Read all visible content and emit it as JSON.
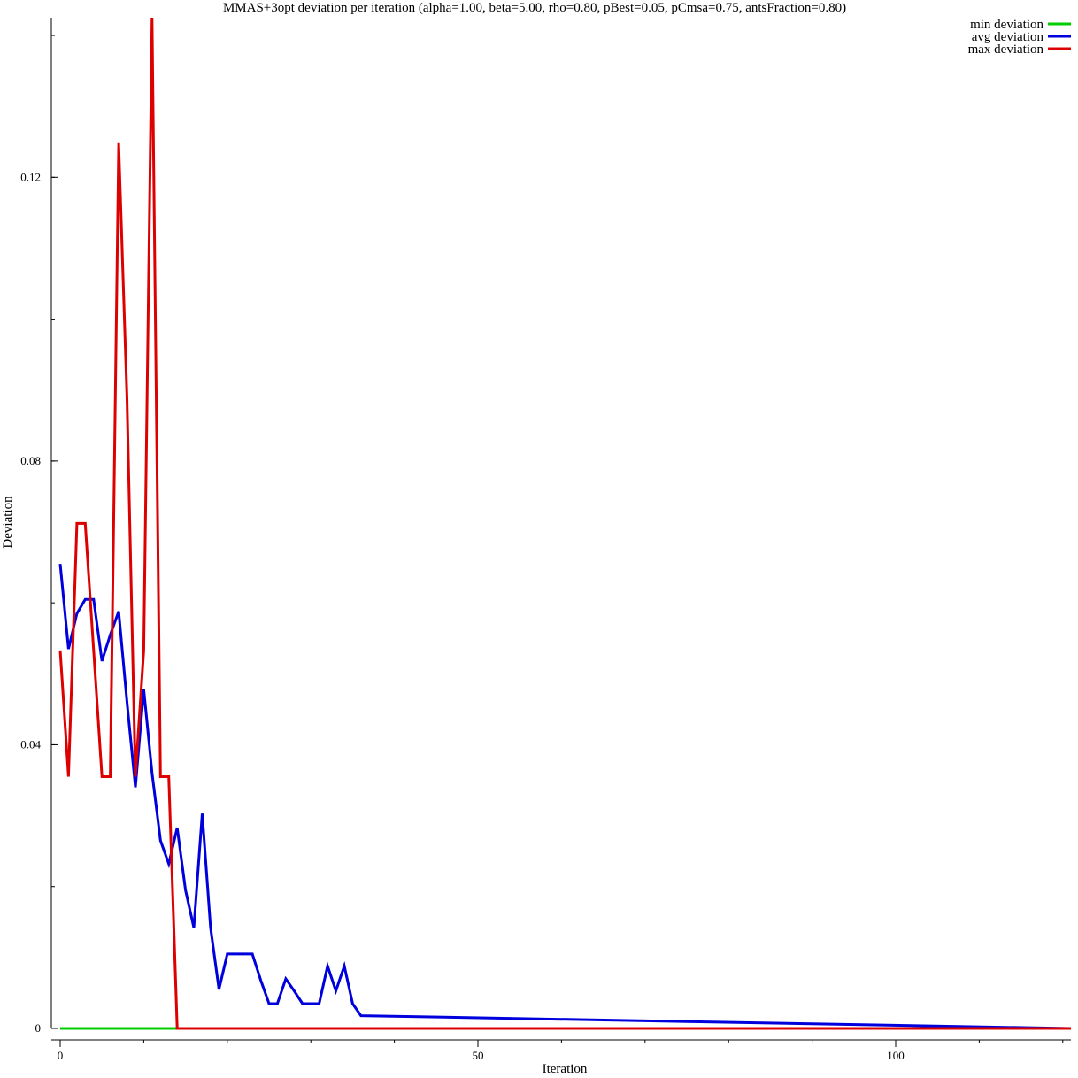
{
  "chart_data": {
    "type": "line",
    "title": "MMAS+3opt deviation per iteration (alpha=1.00, beta=5.00, rho=0.80, pBest=0.05, pCmsa=0.75, antsFraction=0.80)",
    "xlabel": "Iteration",
    "ylabel": "Deviation",
    "xlim": [
      -1,
      121
    ],
    "ylim": [
      0,
      0.1425
    ],
    "x_ticks": [
      0,
      50,
      100
    ],
    "x_tick_labels": [
      "0",
      "50",
      "100"
    ],
    "y_ticks": [
      0,
      0.04,
      0.08,
      0.12
    ],
    "y_tick_labels": [
      "0",
      "0.04",
      "0.08",
      "0.12"
    ],
    "grid": false,
    "legend_position": "top-right",
    "series": [
      {
        "name": "min deviation",
        "color": "#00cc00",
        "x": [
          0,
          121
        ],
        "y": [
          0,
          0
        ]
      },
      {
        "name": "avg deviation",
        "color": "#0000dd",
        "x": [
          0,
          1,
          2,
          3,
          4,
          5,
          6,
          7,
          8,
          9,
          10,
          11,
          12,
          13,
          14,
          15,
          16,
          17,
          18,
          19,
          20,
          21,
          22,
          23,
          24,
          25,
          26,
          27,
          28,
          29,
          30,
          31,
          32,
          33,
          34,
          35,
          36,
          121
        ],
        "y": [
          0.0655,
          0.0535,
          0.0585,
          0.0605,
          0.0605,
          0.0518,
          0.0555,
          0.0588,
          0.046,
          0.034,
          0.0478,
          0.036,
          0.0265,
          0.0232,
          0.0283,
          0.0195,
          0.0142,
          0.0303,
          0.0142,
          0.0055,
          0.0105,
          0.0105,
          0.0105,
          0.0105,
          0.0068,
          0.0035,
          0.0035,
          0.007,
          0.0053,
          0.0035,
          0.0035,
          0.0035,
          0.0088,
          0.0053,
          0.0088,
          0.0035,
          0.0018,
          0
        ]
      },
      {
        "name": "max deviation",
        "color": "#dd0000",
        "x": [
          0,
          1,
          2,
          3,
          4,
          5,
          6,
          7,
          8,
          9,
          10,
          11,
          12,
          13,
          14,
          121
        ],
        "y": [
          0.0533,
          0.0355,
          0.0712,
          0.0712,
          0.0533,
          0.0355,
          0.0355,
          0.1248,
          0.0888,
          0.0355,
          0.0533,
          0.1425,
          0.0355,
          0.0355,
          0,
          0
        ]
      }
    ]
  }
}
